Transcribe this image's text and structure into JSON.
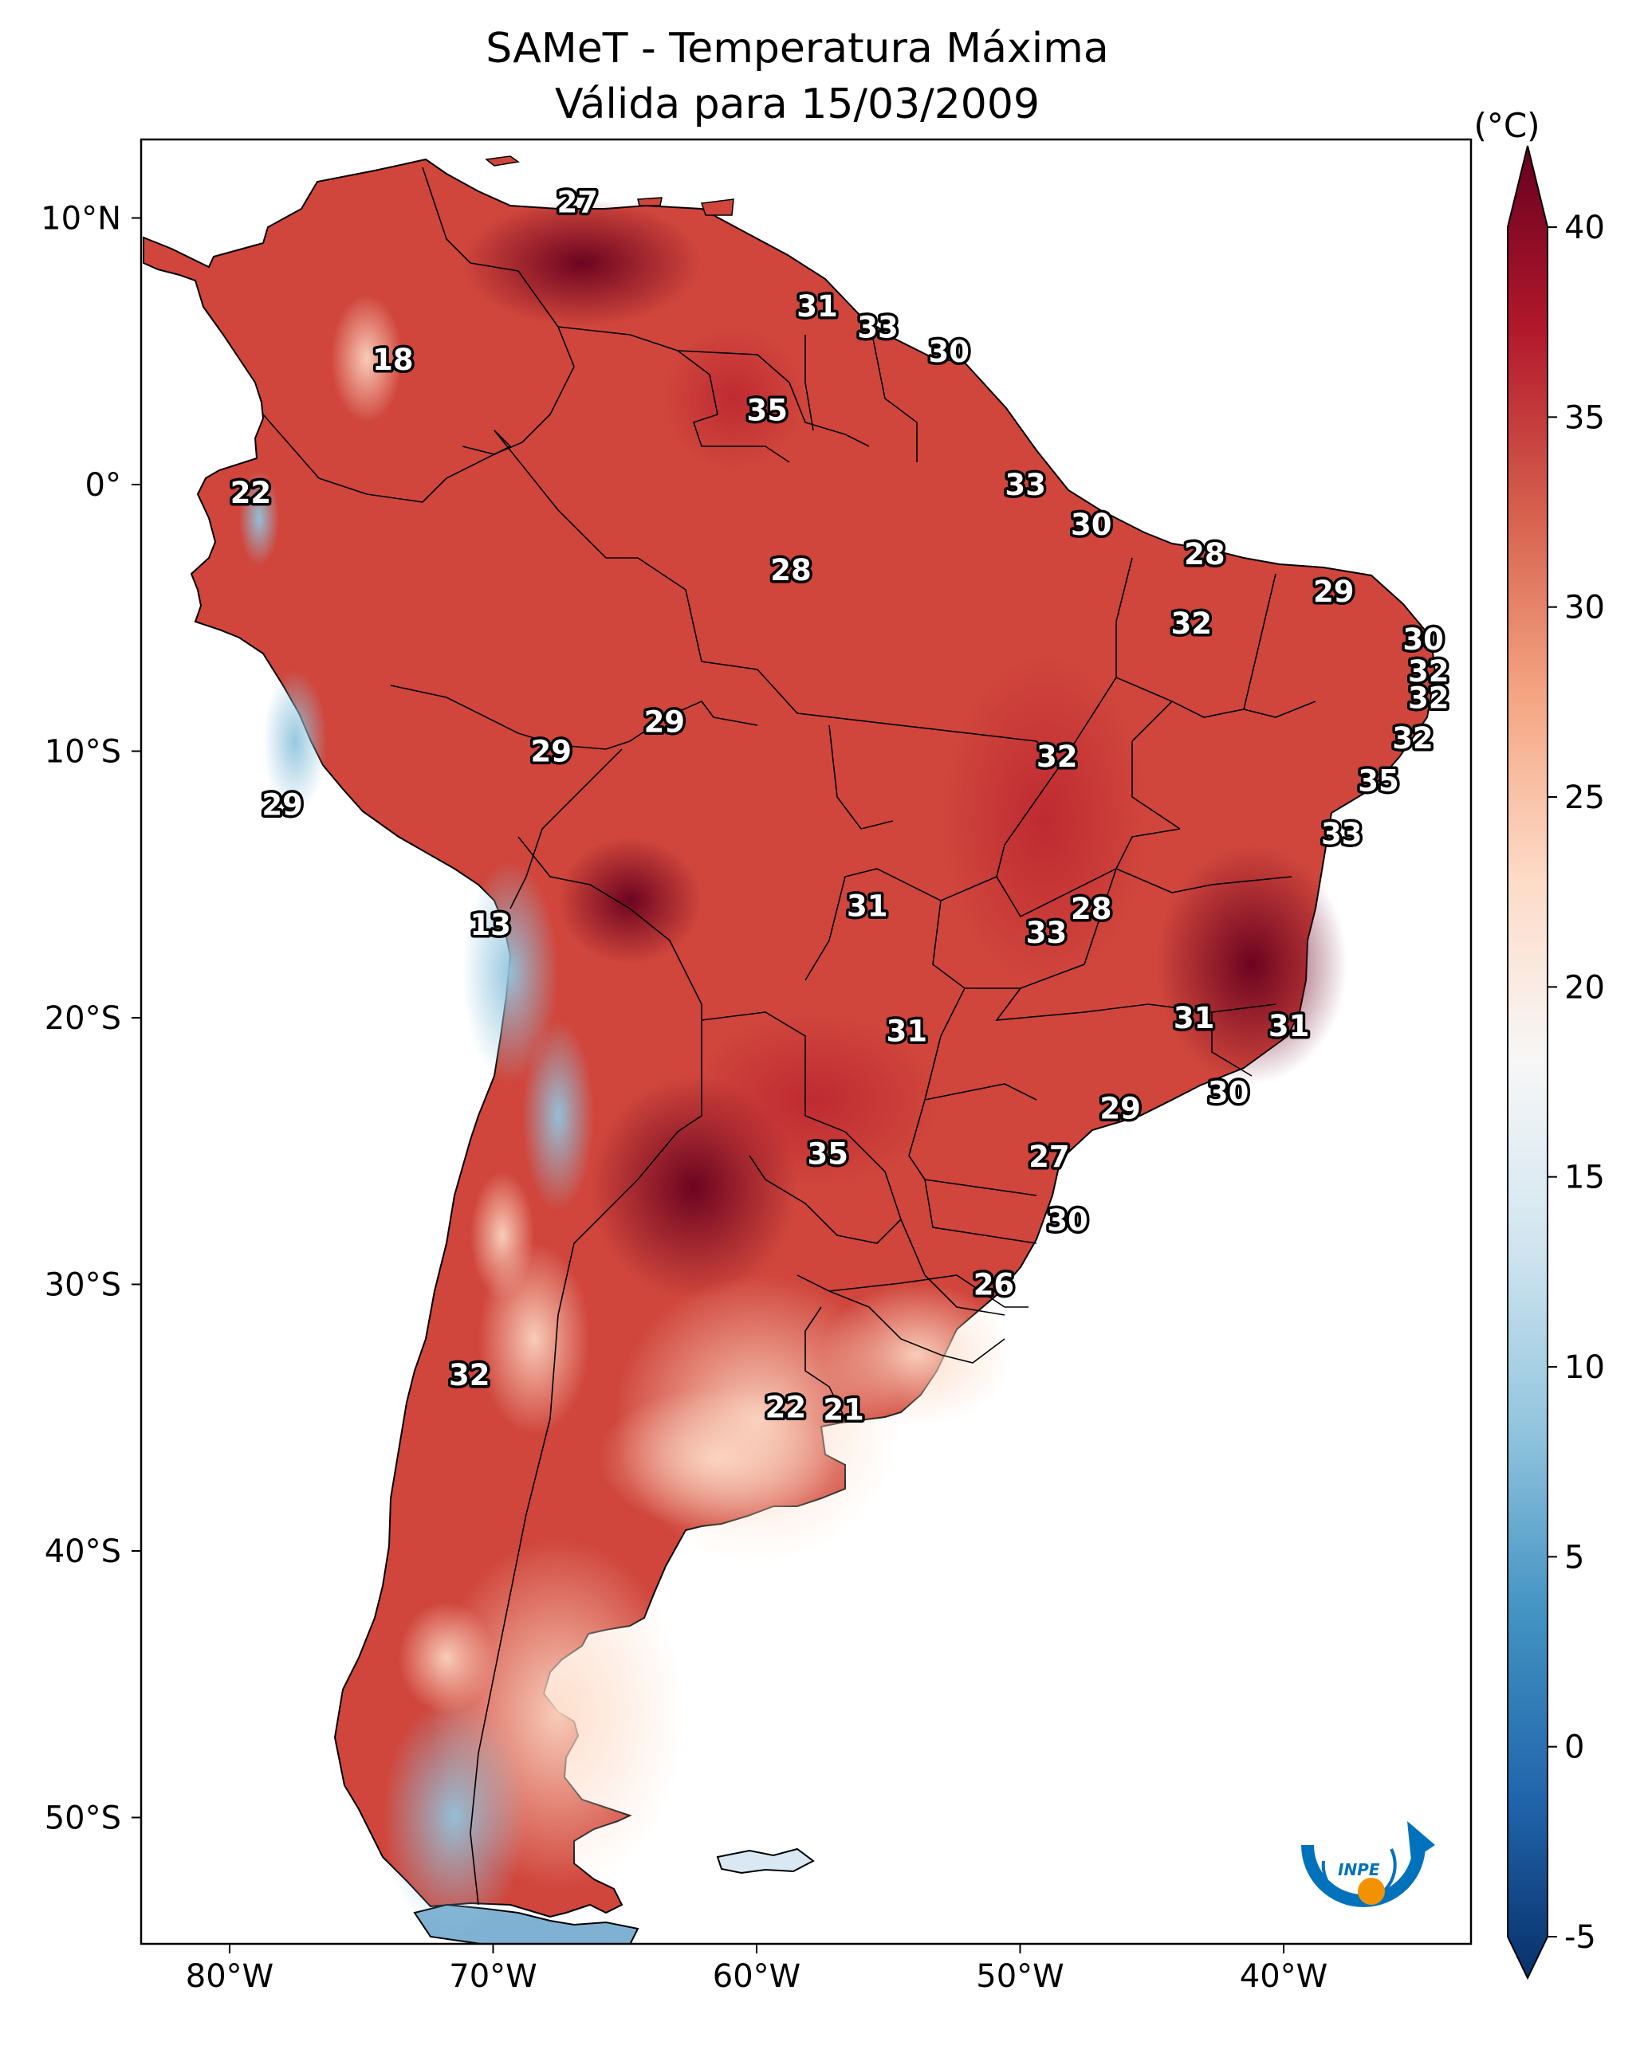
{
  "title": {
    "line1": "SAMeT - Temperatura Máxima",
    "line2": "Válida para 15/03/2009"
  },
  "axes": {
    "lon_labels": [
      "80°W",
      "70°W",
      "60°W",
      "50°W",
      "40°W"
    ],
    "lat_labels": [
      "10°N",
      "0°",
      "10°S",
      "20°S",
      "30°S",
      "40°S",
      "50°S"
    ]
  },
  "colorbar": {
    "unit": "(°C)",
    "min": -5,
    "max": 40,
    "ticks": [
      "-5",
      "0",
      "5",
      "10",
      "15",
      "20",
      "25",
      "30",
      "35",
      "40"
    ],
    "stops": [
      "#08306b",
      "#2166ac",
      "#4393c3",
      "#92c5de",
      "#d1e5f0",
      "#f7f7f7",
      "#fddbc7",
      "#f4a582",
      "#d6604d",
      "#b2182b",
      "#67001f"
    ]
  },
  "logo": {
    "text": "INPE",
    "colors": {
      "blue": "#0072bc",
      "orange": "#f39200"
    }
  },
  "station_labels": [
    {
      "t": "27",
      "lon": -66.8,
      "lat": 10.6
    },
    {
      "t": "31",
      "lon": -57.7,
      "lat": 6.7
    },
    {
      "t": "33",
      "lon": -55.4,
      "lat": 5.9
    },
    {
      "t": "30",
      "lon": -52.7,
      "lat": 5.0
    },
    {
      "t": "18",
      "lon": -73.8,
      "lat": 4.7
    },
    {
      "t": "35",
      "lon": -59.6,
      "lat": 2.8
    },
    {
      "t": "33",
      "lon": -49.8,
      "lat": 0.0
    },
    {
      "t": "22",
      "lon": -79.2,
      "lat": -0.3
    },
    {
      "t": "30",
      "lon": -47.3,
      "lat": -1.5
    },
    {
      "t": "28",
      "lon": -43.0,
      "lat": -2.6
    },
    {
      "t": "28",
      "lon": -58.7,
      "lat": -3.2
    },
    {
      "t": "29",
      "lon": -38.1,
      "lat": -4.0
    },
    {
      "t": "32",
      "lon": -43.5,
      "lat": -5.2
    },
    {
      "t": "30",
      "lon": -34.7,
      "lat": -5.8
    },
    {
      "t": "32",
      "lon": -34.5,
      "lat": -7.0
    },
    {
      "t": "32",
      "lon": -34.5,
      "lat": -8.0
    },
    {
      "t": "29",
      "lon": -63.5,
      "lat": -8.9
    },
    {
      "t": "32",
      "lon": -35.1,
      "lat": -9.5
    },
    {
      "t": "29",
      "lon": -67.8,
      "lat": -10.0
    },
    {
      "t": "32",
      "lon": -48.6,
      "lat": -10.2
    },
    {
      "t": "35",
      "lon": -36.4,
      "lat": -11.1
    },
    {
      "t": "29",
      "lon": -78.0,
      "lat": -12.0
    },
    {
      "t": "33",
      "lon": -37.8,
      "lat": -13.1
    },
    {
      "t": "31",
      "lon": -55.8,
      "lat": -15.8
    },
    {
      "t": "28",
      "lon": -47.3,
      "lat": -15.9
    },
    {
      "t": "13",
      "lon": -70.1,
      "lat": -16.5
    },
    {
      "t": "33",
      "lon": -49.0,
      "lat": -16.8
    },
    {
      "t": "31",
      "lon": -43.4,
      "lat": -20.0
    },
    {
      "t": "31",
      "lon": -39.8,
      "lat": -20.3
    },
    {
      "t": "31",
      "lon": -54.3,
      "lat": -20.5
    },
    {
      "t": "30",
      "lon": -42.1,
      "lat": -22.8
    },
    {
      "t": "29",
      "lon": -46.2,
      "lat": -23.4
    },
    {
      "t": "35",
      "lon": -57.3,
      "lat": -25.1
    },
    {
      "t": "27",
      "lon": -48.9,
      "lat": -25.2
    },
    {
      "t": "30",
      "lon": -48.2,
      "lat": -27.6
    },
    {
      "t": "26",
      "lon": -51.0,
      "lat": -30.0
    },
    {
      "t": "32",
      "lon": -70.9,
      "lat": -33.4
    },
    {
      "t": "22",
      "lon": -58.9,
      "lat": -34.6
    },
    {
      "t": "21",
      "lon": -56.7,
      "lat": -34.7
    }
  ]
}
